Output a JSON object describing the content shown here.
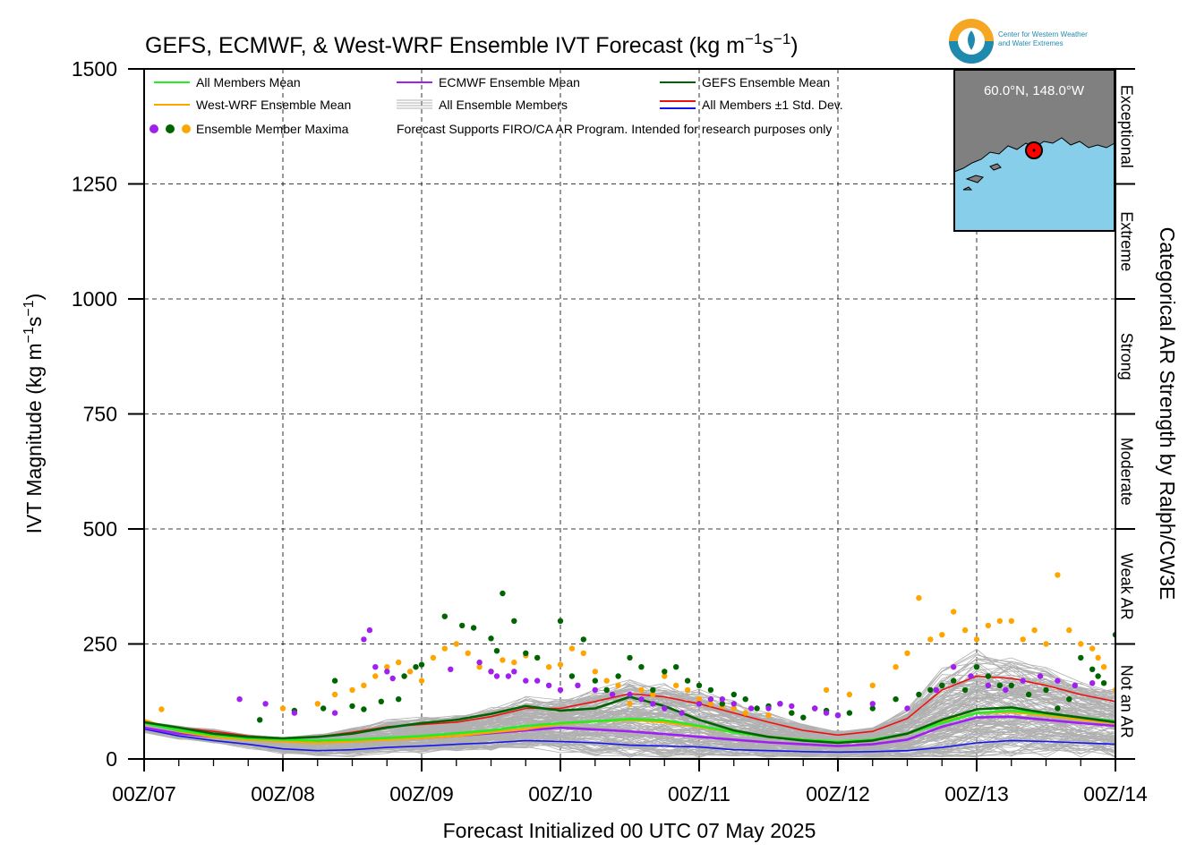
{
  "header": {
    "title_main": "GEFS, ECMWF, & West-WRF Ensemble IVT Forecast (kg m",
    "title_sup1": "−1",
    "title_mid": "s",
    "title_sup2": "−1",
    "title_end": ")",
    "logo_line1": "Center for Western Weather",
    "logo_line2": "and Water Extremes"
  },
  "axes": {
    "ylabel_main": "IVT Magnitude (kg m",
    "ylabel_sup1": "−1",
    "ylabel_mid": "s",
    "ylabel_sup2": "−1",
    "ylabel_end": ")",
    "xlabel": "Forecast Initialized 00 UTC 07 May 2025",
    "right_label": "Categorical AR Strength by Ralph/CW3E"
  },
  "legend": {
    "all_mean": "All Members Mean",
    "ecmwf_mean": "ECMWF Ensemble Mean",
    "gefs_mean": "GEFS Ensemble Mean",
    "wrf_mean": "West-WRF Ensemble Mean",
    "all_members": "All Ensemble Members",
    "std_dev": "All Members ±1 Std. Dev.",
    "maxima": "Ensemble Member Maxima",
    "note": "Forecast Supports FIRO/CA AR Program. Intended for research purposes only"
  },
  "inset": {
    "location": "60.0°N, 148.0°W"
  },
  "colors": {
    "all_mean": "#22ee22",
    "ecmwf": "#a020f0",
    "gefs": "#006400",
    "wrf": "#ffa500",
    "members": "#b0b0b0",
    "std_upper": "#ee1111",
    "std_lower": "#1515ee",
    "ocean": "#87ceeb",
    "land": "#808080"
  },
  "chart_data": {
    "type": "line",
    "x": [
      "00Z/07",
      "06Z/07",
      "12Z/07",
      "18Z/07",
      "00Z/08",
      "06Z/08",
      "12Z/08",
      "18Z/08",
      "00Z/09",
      "06Z/09",
      "12Z/09",
      "18Z/09",
      "00Z/10",
      "06Z/10",
      "12Z/10",
      "18Z/10",
      "00Z/11",
      "06Z/11",
      "12Z/11",
      "18Z/11",
      "00Z/12",
      "06Z/12",
      "12Z/12",
      "18Z/12",
      "00Z/13",
      "06Z/13",
      "12Z/13",
      "18Z/13",
      "00Z/14"
    ],
    "x_ticklabels": [
      "00Z/07",
      "00Z/08",
      "00Z/09",
      "00Z/10",
      "00Z/11",
      "00Z/12",
      "00Z/13",
      "00Z/14"
    ],
    "ylim": [
      0,
      1500
    ],
    "yticks": [
      0,
      250,
      500,
      750,
      1000,
      1250,
      1500
    ],
    "grid": true,
    "legend_position": "top",
    "categories_right": [
      {
        "label": "Not an AR",
        "range": [
          0,
          250
        ]
      },
      {
        "label": "Weak AR",
        "range": [
          250,
          500
        ]
      },
      {
        "label": "Moderate",
        "range": [
          500,
          750
        ]
      },
      {
        "label": "Strong",
        "range": [
          750,
          1000
        ]
      },
      {
        "label": "Extreme",
        "range": [
          1000,
          1250
        ]
      },
      {
        "label": "Exceptional",
        "range": [
          1250,
          1500
        ]
      }
    ],
    "series": [
      {
        "name": "All Members Mean",
        "key": "all_mean",
        "values": [
          78,
          62,
          52,
          45,
          42,
          40,
          42,
          46,
          50,
          56,
          62,
          72,
          78,
          82,
          87,
          84,
          72,
          58,
          48,
          42,
          38,
          42,
          55,
          78,
          100,
          105,
          98,
          90,
          82
        ]
      },
      {
        "name": "ECMWF Ensemble Mean",
        "key": "ecmwf",
        "values": [
          68,
          55,
          48,
          43,
          40,
          38,
          40,
          43,
          46,
          50,
          56,
          62,
          68,
          64,
          60,
          54,
          48,
          42,
          36,
          32,
          28,
          32,
          42,
          70,
          90,
          92,
          85,
          78,
          72
        ]
      },
      {
        "name": "GEFS Ensemble Mean",
        "key": "gefs",
        "values": [
          80,
          68,
          55,
          48,
          45,
          48,
          55,
          68,
          78,
          85,
          98,
          115,
          105,
          110,
          135,
          115,
          85,
          62,
          48,
          40,
          35,
          40,
          55,
          85,
          108,
          112,
          100,
          90,
          80
        ]
      },
      {
        "name": "West-WRF Ensemble Mean",
        "key": "wrf",
        "values": [
          85,
          60,
          48,
          42,
          38,
          35,
          38,
          42,
          46,
          50,
          58,
          65,
          76,
          82,
          85,
          80,
          70,
          58,
          48,
          42,
          35,
          40,
          55,
          80,
          100,
          102,
          95,
          86,
          78
        ]
      },
      {
        "name": "+1 Std. Dev.",
        "key": "std_upper",
        "values": [
          80,
          68,
          60,
          50,
          45,
          48,
          58,
          70,
          75,
          80,
          92,
          110,
          110,
          125,
          142,
          135,
          120,
          100,
          80,
          62,
          52,
          60,
          88,
          150,
          180,
          175,
          160,
          140,
          125
        ]
      },
      {
        "name": "-1 Std. Dev.",
        "key": "std_lower",
        "values": [
          65,
          50,
          40,
          32,
          22,
          18,
          20,
          25,
          28,
          32,
          35,
          40,
          38,
          35,
          30,
          28,
          26,
          20,
          18,
          16,
          15,
          16,
          18,
          25,
          35,
          40,
          38,
          35,
          32
        ]
      }
    ],
    "maxima": {
      "ecmwf": [
        [
          16.5,
          130
        ],
        [
          21,
          120
        ],
        [
          26,
          100
        ],
        [
          33,
          100
        ],
        [
          38,
          260
        ],
        [
          39,
          280
        ],
        [
          40,
          200
        ],
        [
          42,
          190
        ],
        [
          43,
          175
        ],
        [
          53,
          195
        ],
        [
          58,
          210
        ],
        [
          60,
          190
        ],
        [
          61,
          180
        ],
        [
          63,
          180
        ],
        [
          64,
          190
        ],
        [
          66,
          170
        ],
        [
          68,
          170
        ],
        [
          70,
          160
        ],
        [
          72,
          150
        ],
        [
          75,
          160
        ],
        [
          78,
          150
        ],
        [
          81,
          140
        ],
        [
          84,
          140
        ],
        [
          86,
          130
        ],
        [
          88,
          120
        ],
        [
          90,
          110
        ],
        [
          93,
          100
        ],
        [
          96,
          120
        ],
        [
          98,
          130
        ],
        [
          100,
          130
        ],
        [
          102,
          120
        ],
        [
          105,
          110
        ],
        [
          108,
          110
        ],
        [
          110,
          120
        ],
        [
          112,
          115
        ],
        [
          116,
          110
        ],
        [
          118,
          100
        ],
        [
          120,
          95
        ],
        [
          126,
          120
        ],
        [
          132,
          110
        ],
        [
          137,
          150
        ],
        [
          140,
          200
        ],
        [
          143,
          180
        ],
        [
          146,
          160
        ],
        [
          149,
          150
        ],
        [
          152,
          170
        ],
        [
          155,
          180
        ],
        [
          158,
          170
        ],
        [
          161,
          160
        ],
        [
          164,
          165
        ]
      ],
      "gefs": [
        [
          20,
          85
        ],
        [
          26,
          105
        ],
        [
          31,
          110
        ],
        [
          33,
          170
        ],
        [
          36,
          115
        ],
        [
          38,
          108
        ],
        [
          41,
          125
        ],
        [
          44,
          130
        ],
        [
          45,
          180
        ],
        [
          47,
          200
        ],
        [
          48,
          205
        ],
        [
          52,
          310
        ],
        [
          55,
          290
        ],
        [
          57,
          285
        ],
        [
          60,
          262
        ],
        [
          61,
          235
        ],
        [
          62,
          360
        ],
        [
          64,
          300
        ],
        [
          66,
          230
        ],
        [
          68,
          220
        ],
        [
          72,
          300
        ],
        [
          74,
          180
        ],
        [
          76,
          260
        ],
        [
          78,
          170
        ],
        [
          80,
          150
        ],
        [
          82,
          180
        ],
        [
          84,
          220
        ],
        [
          86,
          200
        ],
        [
          88,
          150
        ],
        [
          90,
          190
        ],
        [
          92,
          200
        ],
        [
          94,
          170
        ],
        [
          96,
          160
        ],
        [
          98,
          150
        ],
        [
          100,
          120
        ],
        [
          102,
          140
        ],
        [
          104,
          130
        ],
        [
          106,
          110
        ],
        [
          108,
          115
        ],
        [
          110,
          120
        ],
        [
          112,
          100
        ],
        [
          114,
          90
        ],
        [
          116,
          110
        ],
        [
          118,
          105
        ],
        [
          120,
          95
        ],
        [
          122,
          100
        ],
        [
          126,
          110
        ],
        [
          130,
          130
        ],
        [
          134,
          140
        ],
        [
          136,
          150
        ],
        [
          138,
          160
        ],
        [
          140,
          170
        ],
        [
          142,
          150
        ],
        [
          144,
          200
        ],
        [
          146,
          180
        ],
        [
          148,
          160
        ],
        [
          150,
          160
        ],
        [
          153,
          140
        ],
        [
          156,
          150
        ],
        [
          158,
          110
        ],
        [
          160,
          130
        ],
        [
          162,
          220
        ],
        [
          164,
          195
        ],
        [
          165,
          180
        ],
        [
          166,
          165
        ],
        [
          168,
          270
        ]
      ],
      "wrf": [
        [
          3,
          108
        ],
        [
          24,
          110
        ],
        [
          30,
          120
        ],
        [
          33,
          140
        ],
        [
          36,
          150
        ],
        [
          38,
          160
        ],
        [
          40,
          180
        ],
        [
          42,
          200
        ],
        [
          44,
          210
        ],
        [
          46,
          190
        ],
        [
          48,
          170
        ],
        [
          50,
          220
        ],
        [
          52,
          240
        ],
        [
          54,
          250
        ],
        [
          56,
          230
        ],
        [
          58,
          200
        ],
        [
          60,
          190
        ],
        [
          62,
          215
        ],
        [
          64,
          210
        ],
        [
          66,
          225
        ],
        [
          68,
          220
        ],
        [
          70,
          200
        ],
        [
          72,
          205
        ],
        [
          74,
          240
        ],
        [
          76,
          230
        ],
        [
          78,
          190
        ],
        [
          80,
          170
        ],
        [
          82,
          160
        ],
        [
          84,
          120
        ],
        [
          86,
          150
        ],
        [
          88,
          140
        ],
        [
          90,
          180
        ],
        [
          92,
          160
        ],
        [
          94,
          150
        ],
        [
          96,
          130
        ],
        [
          98,
          120
        ],
        [
          100,
          115
        ],
        [
          102,
          110
        ],
        [
          104,
          100
        ],
        [
          108,
          95
        ],
        [
          112,
          100
        ],
        [
          116,
          110
        ],
        [
          118,
          150
        ],
        [
          122,
          140
        ],
        [
          126,
          160
        ],
        [
          130,
          200
        ],
        [
          132,
          230
        ],
        [
          134,
          350
        ],
        [
          136,
          260
        ],
        [
          138,
          270
        ],
        [
          140,
          320
        ],
        [
          142,
          280
        ],
        [
          144,
          260
        ],
        [
          146,
          290
        ],
        [
          148,
          300
        ],
        [
          150,
          300
        ],
        [
          152,
          260
        ],
        [
          154,
          280
        ],
        [
          156,
          250
        ],
        [
          158,
          400
        ],
        [
          160,
          280
        ],
        [
          162,
          250
        ],
        [
          164,
          240
        ],
        [
          165,
          220
        ],
        [
          166,
          200
        ],
        [
          168,
          150
        ]
      ]
    }
  }
}
